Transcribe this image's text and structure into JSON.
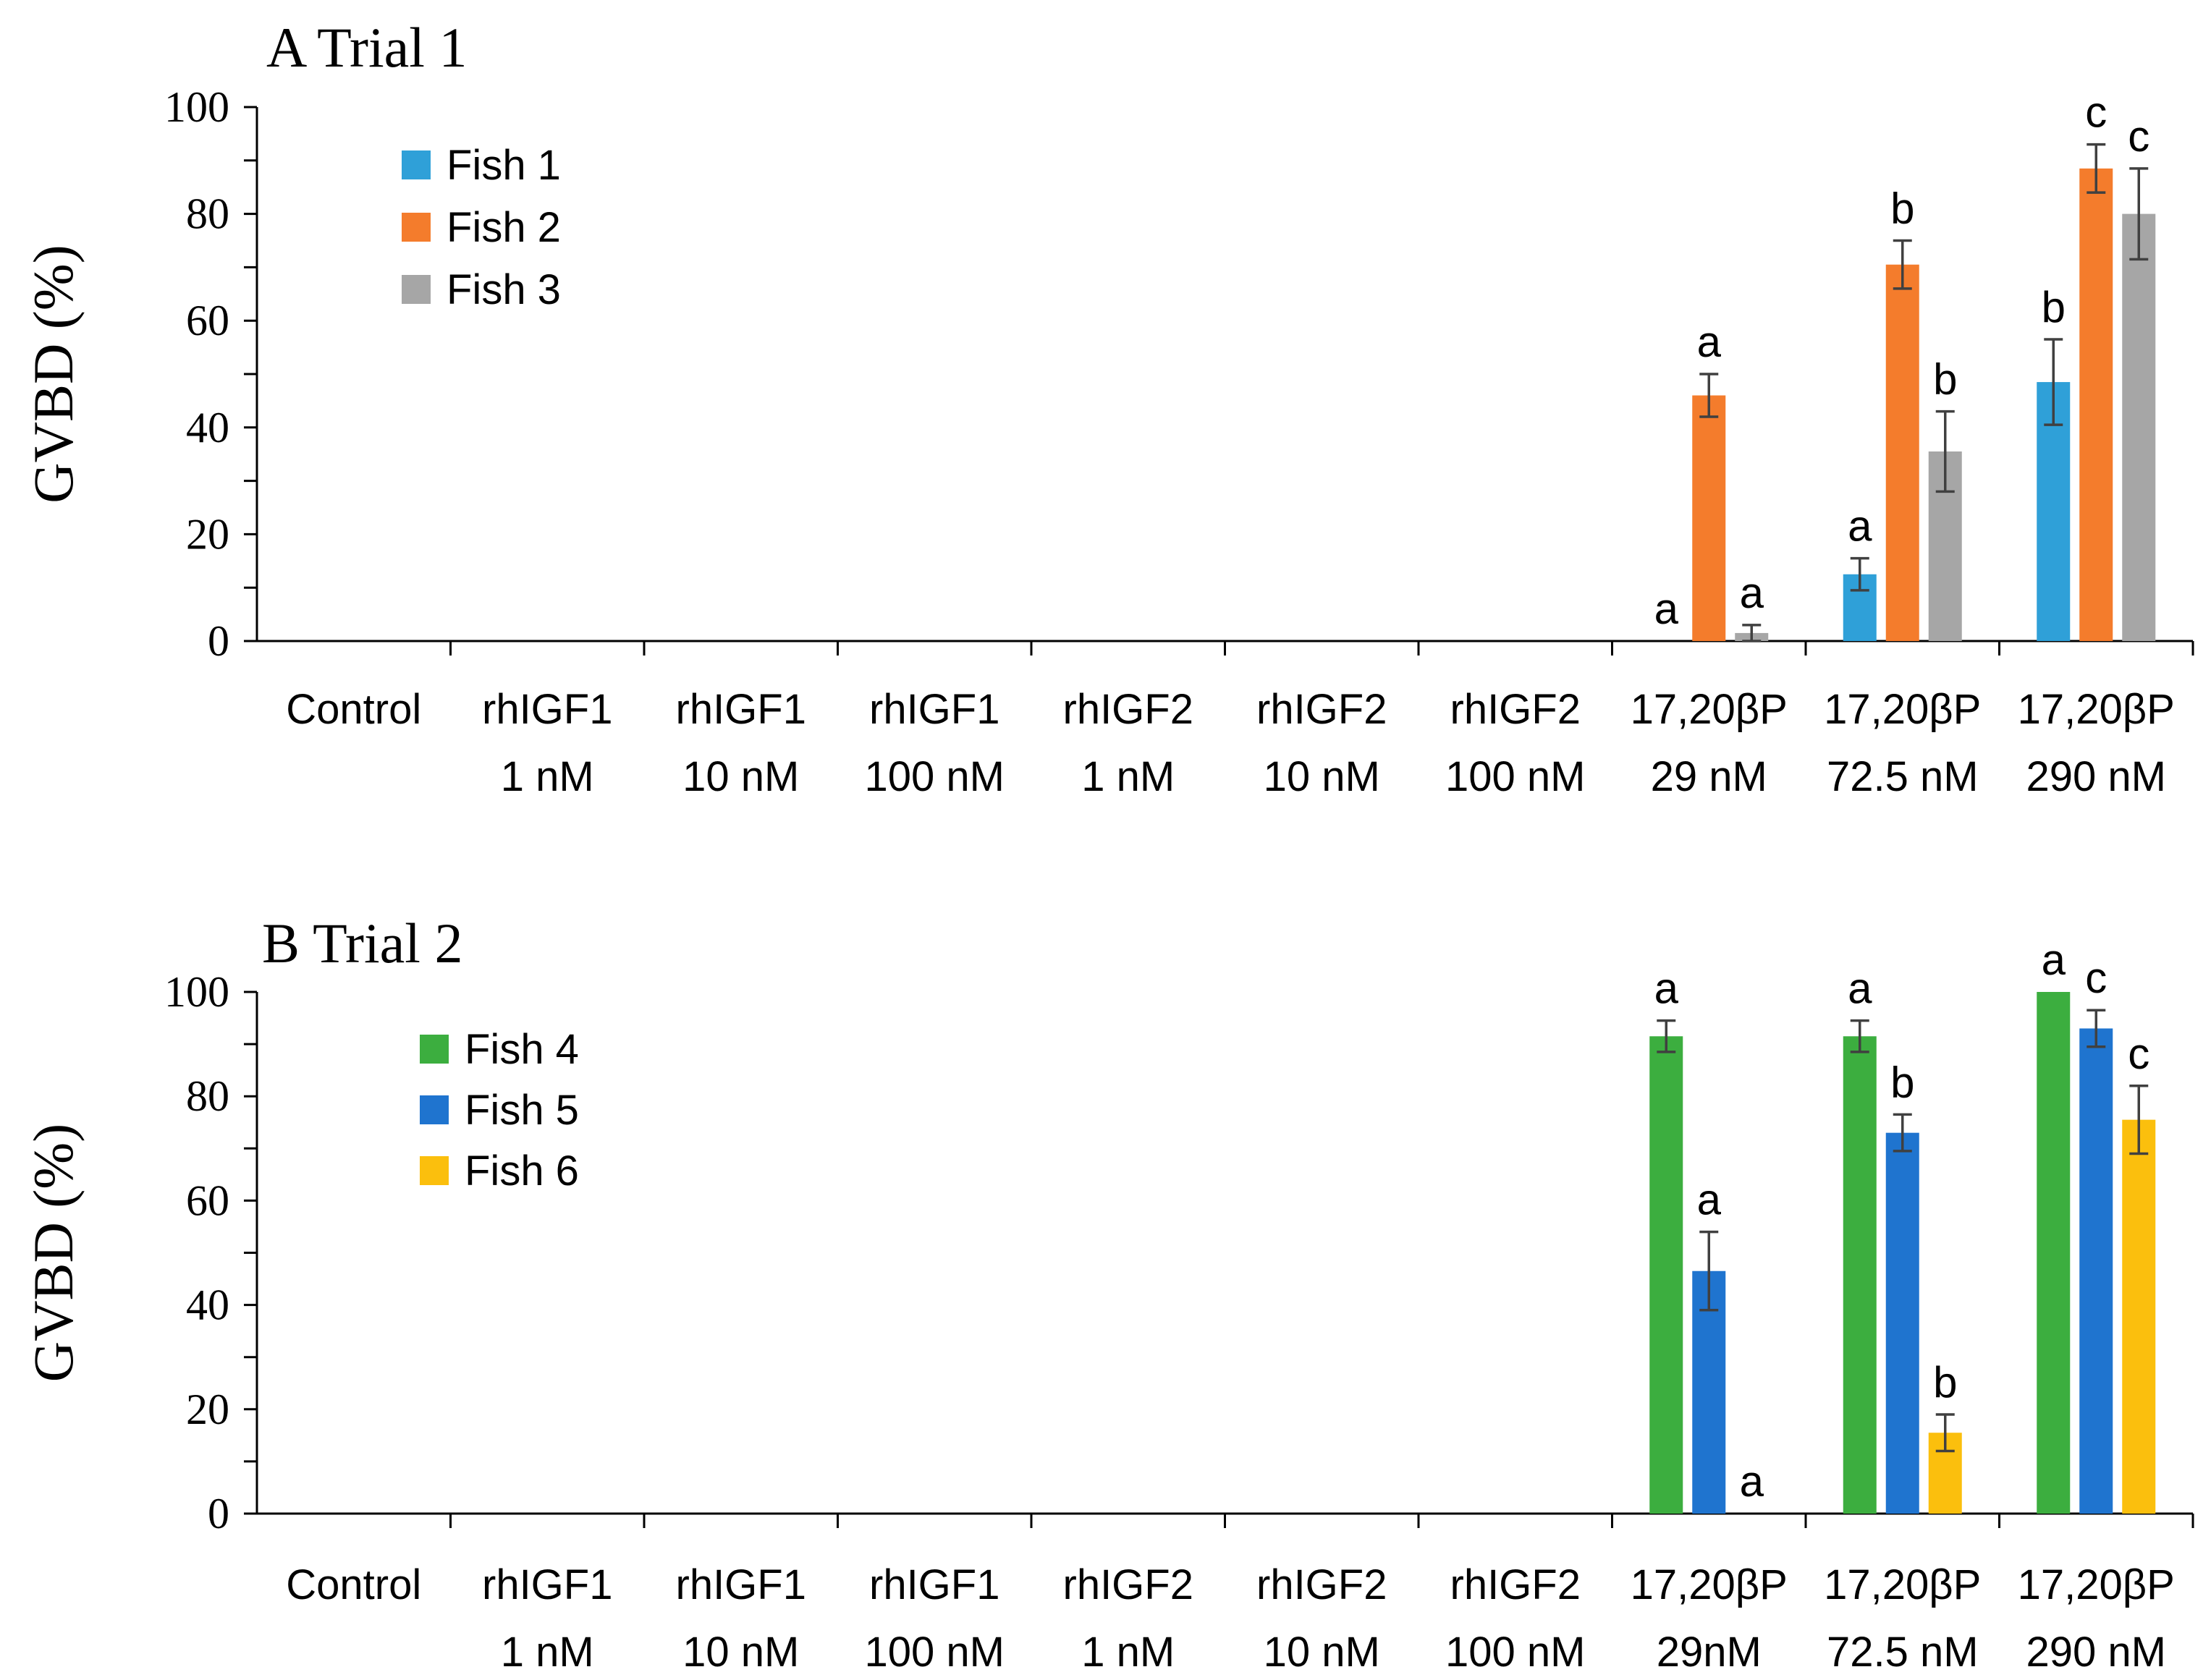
{
  "colors": {
    "fish1": "#2fa0d8",
    "fish2": "#f47c2c",
    "fish3": "#a6a6a6",
    "fish4": "#3cae3f",
    "fish5": "#1f74cf",
    "fish6": "#fbbf0d"
  },
  "chart_data": [
    {
      "type": "bar",
      "title": "A Trial 1",
      "ylabel": "GVBD (%)",
      "xlabel": "",
      "ylim": [
        0,
        100
      ],
      "yticks": [
        "0",
        "20",
        "40",
        "60",
        "80",
        "100"
      ],
      "categories": [
        {
          "line1": "Control",
          "line2": ""
        },
        {
          "line1": "rhIGF1",
          "line2": "1 nM"
        },
        {
          "line1": "rhIGF1",
          "line2": "10 nM"
        },
        {
          "line1": "rhIGF1",
          "line2": "100 nM"
        },
        {
          "line1": "rhIGF2",
          "line2": "1 nM"
        },
        {
          "line1": "rhIGF2",
          "line2": "10 nM"
        },
        {
          "line1": "rhIGF2",
          "line2": "100 nM"
        },
        {
          "line1": "17,20βP",
          "line2": "29 nM"
        },
        {
          "line1": "17,20βP",
          "line2": "72.5 nM"
        },
        {
          "line1": "17,20βP",
          "line2": "290 nM"
        }
      ],
      "legend_position": "top-left",
      "series": [
        {
          "name": "Fish 1",
          "color_key": "fish1",
          "values": [
            0,
            0,
            0,
            0,
            0,
            0,
            0,
            0,
            12.5,
            48.5
          ],
          "errors": [
            0,
            0,
            0,
            0,
            0,
            0,
            0,
            0,
            3.0,
            8.0
          ],
          "labels": [
            "",
            "",
            "",
            "",
            "",
            "",
            "",
            "a",
            "a",
            "b"
          ]
        },
        {
          "name": "Fish 2",
          "color_key": "fish2",
          "values": [
            0,
            0,
            0,
            0,
            0,
            0,
            0,
            46.0,
            70.5,
            88.5
          ],
          "errors": [
            0,
            0,
            0,
            0,
            0,
            0,
            0,
            4.0,
            4.5,
            4.5
          ],
          "labels": [
            "",
            "",
            "",
            "",
            "",
            "",
            "",
            "a",
            "b",
            "c"
          ]
        },
        {
          "name": "Fish 3",
          "color_key": "fish3",
          "values": [
            0,
            0,
            0,
            0,
            0,
            0,
            0,
            1.5,
            35.5,
            80.0
          ],
          "errors": [
            0,
            0,
            0,
            0,
            0,
            0,
            0,
            1.5,
            7.5,
            8.5
          ],
          "labels": [
            "",
            "",
            "",
            "",
            "",
            "",
            "",
            "a",
            "b",
            "c"
          ]
        }
      ]
    },
    {
      "type": "bar",
      "title": "B Trial 2",
      "ylabel": "GVBD (%)",
      "xlabel": "",
      "ylim": [
        0,
        100
      ],
      "yticks": [
        "0",
        "20",
        "40",
        "60",
        "80",
        "100"
      ],
      "categories": [
        {
          "line1": "Control",
          "line2": ""
        },
        {
          "line1": "rhIGF1",
          "line2": "1 nM"
        },
        {
          "line1": "rhIGF1",
          "line2": "10 nM"
        },
        {
          "line1": "rhIGF1",
          "line2": "100 nM"
        },
        {
          "line1": "rhIGF2",
          "line2": "1 nM"
        },
        {
          "line1": "rhIGF2",
          "line2": "10 nM"
        },
        {
          "line1": "rhIGF2",
          "line2": "100 nM"
        },
        {
          "line1": "17,20βP",
          "line2": "29nM"
        },
        {
          "line1": "17,20βP",
          "line2": "72.5 nM"
        },
        {
          "line1": "17,20βP",
          "line2": "290 nM"
        }
      ],
      "legend_position": "top-left",
      "series": [
        {
          "name": "Fish 4",
          "color_key": "fish4",
          "values": [
            0,
            0,
            0,
            0,
            0,
            0,
            0,
            91.5,
            91.5,
            100
          ],
          "errors": [
            0,
            0,
            0,
            0,
            0,
            0,
            0,
            3.0,
            3.0,
            0
          ],
          "labels": [
            "",
            "",
            "",
            "",
            "",
            "",
            "",
            "a",
            "a",
            "a"
          ]
        },
        {
          "name": "Fish 5",
          "color_key": "fish5",
          "values": [
            0,
            0,
            0,
            0,
            0,
            0,
            0,
            46.5,
            73.0,
            93.0
          ],
          "errors": [
            0,
            0,
            0,
            0,
            0,
            0,
            0,
            7.5,
            3.5,
            3.5
          ],
          "labels": [
            "",
            "",
            "",
            "",
            "",
            "",
            "",
            "a",
            "b",
            "c"
          ]
        },
        {
          "name": "Fish 6",
          "color_key": "fish6",
          "values": [
            0,
            0,
            0,
            0,
            0,
            0,
            0,
            0,
            15.5,
            75.5
          ],
          "errors": [
            0,
            0,
            0,
            0,
            0,
            0,
            0,
            0,
            3.5,
            6.5
          ],
          "labels": [
            "",
            "",
            "",
            "",
            "",
            "",
            "",
            "a",
            "b",
            "c"
          ]
        }
      ]
    }
  ]
}
